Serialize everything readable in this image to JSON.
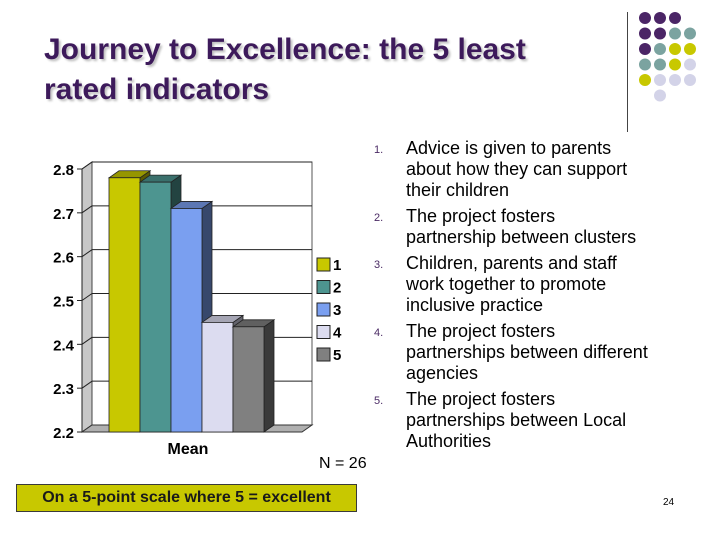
{
  "slide": {
    "title_line1": "Journey to Excellence: the 5 least",
    "title_line2": "rated indicators",
    "n_note": "N = 26",
    "scale_note": "On a 5-point scale where 5 = excellent",
    "page_number": "24"
  },
  "indicators": [
    {
      "num": "1.",
      "line1": "Advice is given to parents",
      "line2": "about how they can support",
      "line3": "their children"
    },
    {
      "num": "2.",
      "line1": "The project fosters",
      "line2": "partnership between clusters",
      "line3": ""
    },
    {
      "num": "3.",
      "line1": "Children, parents and staff",
      "line2": "work together to promote",
      "line3": "inclusive practice"
    },
    {
      "num": "4.",
      "line1": "The project fosters",
      "line2": "partnerships between different",
      "line3": "agencies"
    },
    {
      "num": "5.",
      "line1": "The project fosters",
      "line2": "partnerships between Local",
      "line3": "Authorities"
    }
  ],
  "colors": {
    "title": "#3d1a5b",
    "dot_purple": "#4b2566",
    "dot_teal": "#7ba3a0",
    "dot_yellow": "#c8c800",
    "dot_lavender": "#d3d3e8",
    "scale_box": "#c8c800"
  },
  "chart_data": {
    "type": "bar",
    "categories": [
      "Mean"
    ],
    "series": [
      {
        "name": "1",
        "values": [
          2.78
        ],
        "color": "#c8c800"
      },
      {
        "name": "2",
        "values": [
          2.77
        ],
        "color": "#4d9590"
      },
      {
        "name": "3",
        "values": [
          2.71
        ],
        "color": "#7a9ff0"
      },
      {
        "name": "4",
        "values": [
          2.45
        ],
        "color": "#dcdcf0"
      },
      {
        "name": "5",
        "values": [
          2.44
        ],
        "color": "#808080"
      }
    ],
    "yticks": [
      "2.8",
      "2.7",
      "2.6",
      "2.5",
      "2.4",
      "2.3",
      "2.2"
    ],
    "ylim": [
      2.2,
      2.8
    ],
    "xlabel": "",
    "ylabel": "",
    "legend_position": "right",
    "grid": true,
    "style": "3d"
  }
}
